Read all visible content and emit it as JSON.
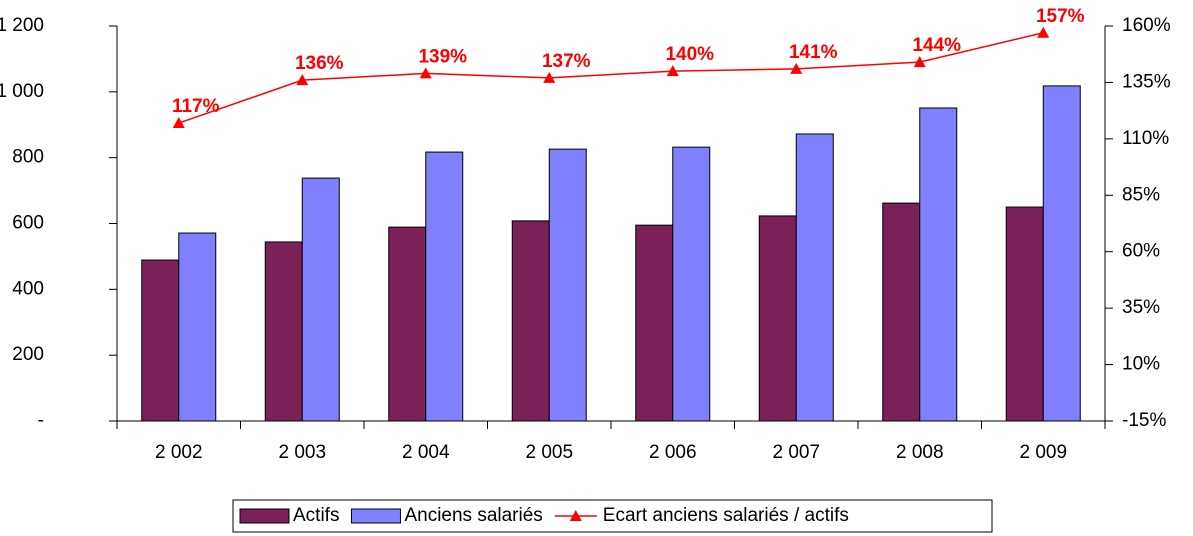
{
  "chart_data": {
    "type": "bar",
    "categories": [
      "2 002",
      "2 003",
      "2 004",
      "2 005",
      "2 006",
      "2 007",
      "2 008",
      "2 009"
    ],
    "series": [
      {
        "name": "Actifs",
        "color": "#7b2157",
        "values": [
          489,
          544,
          589,
          608,
          595,
          623,
          662,
          650
        ]
      },
      {
        "name": "Anciens salariés",
        "color": "#8080ff",
        "values": [
          571,
          738,
          817,
          826,
          832,
          872,
          951,
          1018
        ]
      },
      {
        "name": "Ecart anciens salariés / actifs",
        "color": "#ff0000",
        "type": "line",
        "axis": "y2",
        "values": [
          117,
          136,
          139,
          137,
          140,
          141,
          144,
          157
        ],
        "value_labels": [
          "117%",
          "136%",
          "139%",
          "137%",
          "140%",
          "141%",
          "144%",
          "157%"
        ]
      }
    ],
    "ylim": [
      0,
      1200
    ],
    "yticks": [
      {
        "value": 0,
        "label": "-"
      },
      200,
      400,
      600,
      800,
      {
        "value": 1000,
        "label": "1 000"
      },
      {
        "value": 1200,
        "label": "1 200"
      }
    ],
    "y2lim": [
      -15,
      160
    ],
    "y2ticks": [
      {
        "value": -15,
        "label": "-15%"
      },
      {
        "value": 10,
        "label": "10%"
      },
      {
        "value": 35,
        "label": "35%"
      },
      {
        "value": 60,
        "label": "60%"
      },
      {
        "value": 85,
        "label": "85%"
      },
      {
        "value": 110,
        "label": "110%"
      },
      {
        "value": 135,
        "label": "135%"
      },
      {
        "value": 160,
        "label": "160%"
      }
    ],
    "grid": false,
    "legend": "bottom"
  }
}
